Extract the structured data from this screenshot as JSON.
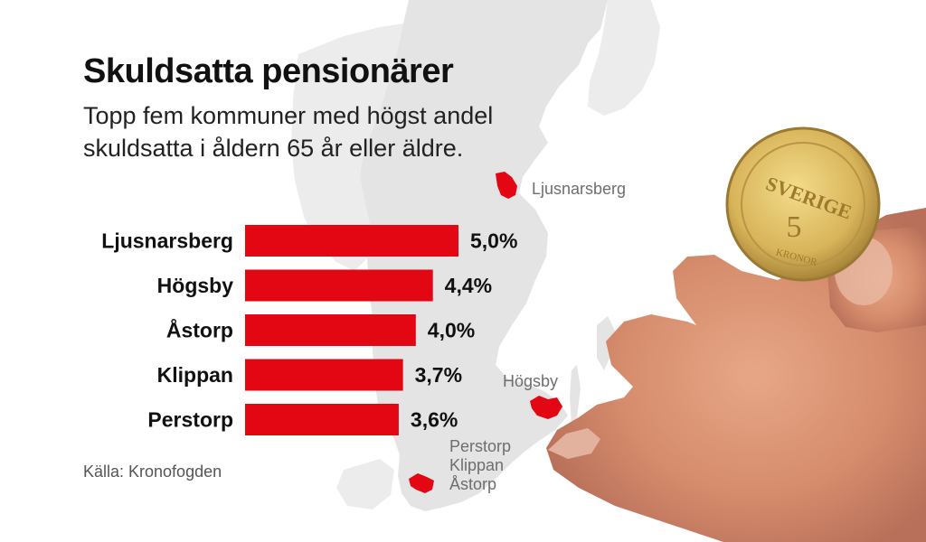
{
  "header": {
    "title": "Skuldsatta pensionärer",
    "subtitle": "Topp fem kommuner med högst andel skuldsatta i åldern 65 år eller äldre."
  },
  "chart_data": {
    "type": "bar",
    "orientation": "horizontal",
    "categories": [
      "Ljusnarsberg",
      "Högsby",
      "Åstorp",
      "Klippan",
      "Perstorp"
    ],
    "values": [
      5.0,
      4.4,
      4.0,
      3.7,
      3.6
    ],
    "value_labels": [
      "5,0%",
      "4,4%",
      "4,0%",
      "3,7%",
      "3,6%"
    ],
    "xlim": [
      0,
      5.0
    ],
    "bar_color": "#e30613",
    "grid": false
  },
  "map": {
    "labels": {
      "ljusnarsberg": "Ljusnarsberg",
      "hogsby": "Högsby",
      "south": [
        "Perstorp",
        "Klippan",
        "Åstorp"
      ]
    },
    "land_color": "#e4e4e4",
    "highlight_color": "#e30613"
  },
  "footer": {
    "source": "Källa: Kronofogden"
  },
  "coin": {
    "text": "SVERIGE",
    "denomination": "5",
    "unit": "KRONOR"
  }
}
